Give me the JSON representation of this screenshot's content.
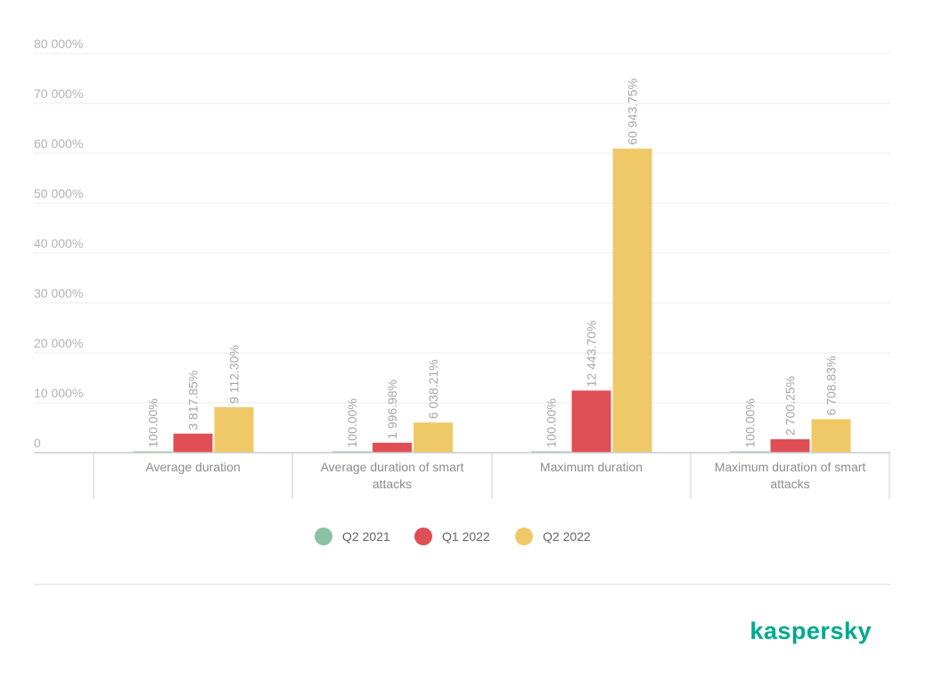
{
  "chart_data": {
    "type": "bar",
    "categories": [
      "Average duration",
      "Average duration of smart attacks",
      "Maximum duration",
      "Maximum duration of smart attacks"
    ],
    "series": [
      {
        "name": "Q2 2021",
        "color": "#8dc0a4",
        "values": [
          100.0,
          100.0,
          100.0,
          100.0
        ],
        "labels": [
          "100.00%",
          "100.00%",
          "100.00%",
          "100.00%"
        ]
      },
      {
        "name": "Q1 2022",
        "color": "#e04e55",
        "values": [
          3817.85,
          1996.98,
          12443.7,
          2700.25
        ],
        "labels": [
          "3 817.85%",
          "1 996.98%",
          "12 443.70%",
          "2 700.25%"
        ]
      },
      {
        "name": "Q2 2022",
        "color": "#efc967",
        "values": [
          9112.3,
          6038.21,
          60943.75,
          6708.83
        ],
        "labels": [
          "9 112.30%",
          "6 038.21%",
          "60 943.75%",
          "6 708.83%"
        ]
      }
    ],
    "ylim": [
      0,
      80000
    ],
    "yticks": [
      0,
      10000,
      20000,
      30000,
      40000,
      50000,
      60000,
      70000,
      80000
    ],
    "ytick_labels": [
      "0",
      "10 000%",
      "20 000%",
      "30 000%",
      "40 000%",
      "50 000%",
      "60 000%",
      "70 000%",
      "80 000%"
    ],
    "grid": true,
    "legend_position": "bottom-center",
    "title": "",
    "xlabel": "",
    "ylabel": ""
  },
  "brand": {
    "logo_text": "kaspersky",
    "color": "#00a88e"
  }
}
